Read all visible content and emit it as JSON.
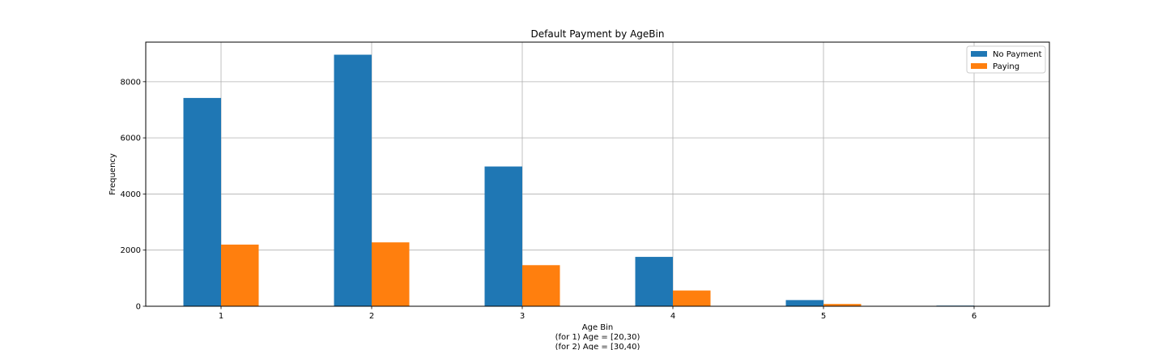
{
  "chart_data": {
    "type": "bar",
    "title": "Default Payment by AgeBin",
    "xlabel_lines": [
      "Age Bin",
      "(for 1) Age = [20,30)",
      "(for 2) Age = [30,40)"
    ],
    "ylabel": "Frequency",
    "categories": [
      "1",
      "2",
      "3",
      "4",
      "5",
      "6"
    ],
    "series": [
      {
        "name": "No Payment",
        "color": "#1f77b4",
        "values": [
          7421,
          8962,
          4979,
          1759,
          220,
          23
        ]
      },
      {
        "name": "Paying",
        "color": "#ff7f0e",
        "values": [
          2197,
          2276,
          1464,
          561,
          81,
          5
        ]
      }
    ],
    "ylim": [
      0,
      9410
    ],
    "yticks": [
      0,
      2000,
      4000,
      6000,
      8000
    ],
    "ytick_labels": [
      "0",
      "2000",
      "4000",
      "6000",
      "8000"
    ],
    "grid": true,
    "legend_position": "top-right"
  }
}
